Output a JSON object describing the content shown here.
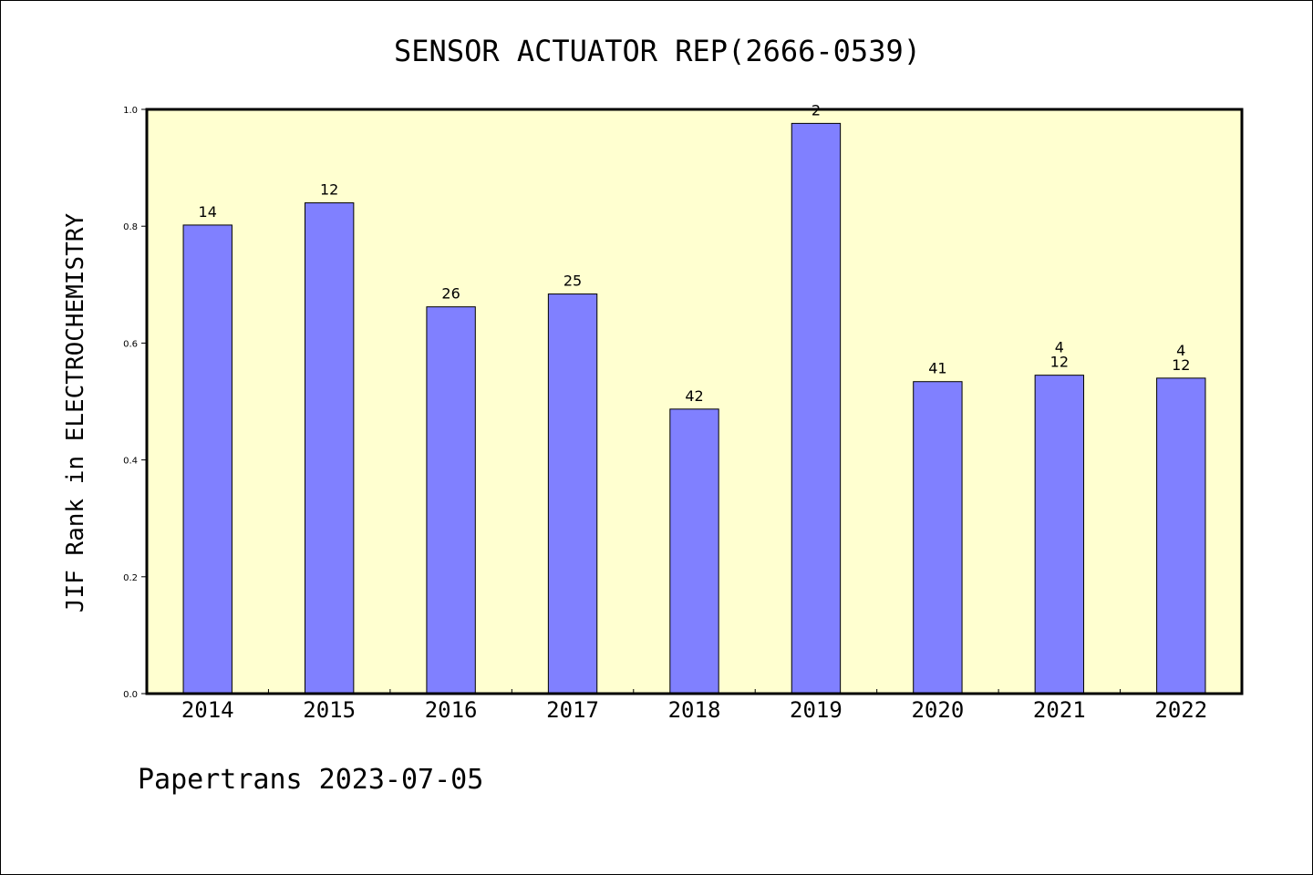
{
  "chart_data": {
    "type": "bar",
    "title": "SENSOR ACTUATOR REP(2666-0539)",
    "xlabel": "",
    "ylabel": "JIF Rank in ELECTROCHEMISTRY",
    "ylim": [
      0,
      1.0
    ],
    "yticks": [
      "0.0",
      "0.2",
      "0.4",
      "0.6",
      "0.8",
      "1.0"
    ],
    "categories": [
      "2014",
      "2015",
      "2016",
      "2017",
      "2018",
      "2019",
      "2020",
      "2021",
      "2022"
    ],
    "values": [
      0.802,
      0.84,
      0.662,
      0.684,
      0.487,
      0.976,
      0.534,
      0.545,
      0.54
    ],
    "labels": [
      [
        "14"
      ],
      [
        "12"
      ],
      [
        "26"
      ],
      [
        "25"
      ],
      [
        "42"
      ],
      [
        "2"
      ],
      [
        "41"
      ],
      [
        "4",
        "12"
      ],
      [
        "4",
        "12"
      ]
    ],
    "grid": false,
    "legend": "none",
    "colors": {
      "bar": "#8080ff",
      "plot_background": "#ffffd0",
      "axis": "#000000"
    }
  },
  "footer": "Papertrans 2023-07-05"
}
